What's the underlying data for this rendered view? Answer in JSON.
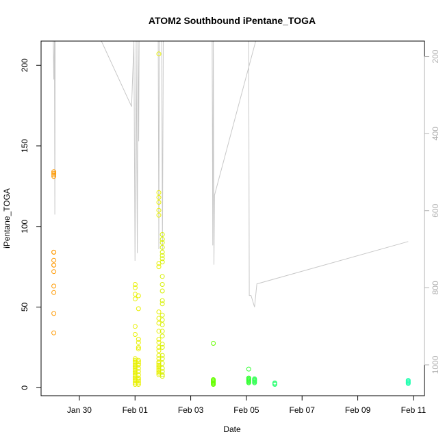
{
  "chart_data": {
    "type": "scatter",
    "title": "ATOM2 Southbound iPentane_TOGA",
    "xlabel": "Date",
    "ylabel": "iPentane_TOGA",
    "x_axis_type": "date",
    "x_range": [
      "2017-01-28T15:00",
      "2017-02-11T09:30"
    ],
    "x_ticks": [
      {
        "label": "Jan 30",
        "date": "2017-01-30"
      },
      {
        "label": "Feb 01",
        "date": "2017-02-01"
      },
      {
        "label": "Feb 03",
        "date": "2017-02-03"
      },
      {
        "label": "Feb 05",
        "date": "2017-02-05"
      },
      {
        "label": "Feb 07",
        "date": "2017-02-07"
      },
      {
        "label": "Feb 09",
        "date": "2017-02-09"
      },
      {
        "label": "Feb 11",
        "date": "2017-02-11"
      }
    ],
    "ylim": [
      -5,
      215
    ],
    "y_ticks": [
      0,
      50,
      100,
      150,
      200
    ],
    "right_axis": {
      "reversed": true,
      "range": [
        160,
        1080
      ],
      "ticks": [
        200,
        400,
        600,
        800,
        1000
      ],
      "color": "#b0b0b0"
    },
    "grid": false,
    "point_groups": [
      {
        "date": "2017-01-29T02:00",
        "color": "#ff9900",
        "values": [
          134,
          133,
          132,
          131,
          84,
          84,
          79,
          76,
          76,
          72,
          63,
          59,
          46,
          34
        ]
      },
      {
        "date": "2017-02-01T00:05",
        "color": "#e8f000",
        "values": [
          64,
          62,
          58,
          55,
          38,
          33,
          18,
          17,
          16,
          15,
          14,
          13,
          12,
          11,
          10,
          9,
          8,
          7,
          6,
          5,
          4,
          3,
          2
        ]
      },
      {
        "date": "2017-02-01T03:00",
        "color": "#e8f000",
        "values": [
          57,
          49,
          30,
          28,
          25,
          24,
          17,
          16,
          15,
          14,
          12,
          10,
          8,
          6,
          5,
          4,
          3,
          2
        ]
      },
      {
        "date": "2017-02-01T20:30",
        "color": "#e8f000",
        "values": [
          207,
          121,
          118,
          115,
          110,
          107,
          77,
          75,
          47,
          43,
          40,
          35,
          30,
          28,
          25,
          23,
          20,
          18,
          16,
          15,
          14,
          13,
          12,
          11,
          10,
          9,
          8
        ]
      },
      {
        "date": "2017-02-01T23:30",
        "color": "#d6f000",
        "values": [
          95,
          92,
          90,
          87,
          84,
          82,
          80,
          78,
          69,
          64,
          60,
          54,
          52,
          45,
          42,
          39,
          35,
          32,
          27,
          25,
          20,
          18,
          15,
          12,
          10,
          8,
          7
        ]
      },
      {
        "date": "2017-02-03T19:30",
        "color": "#66ff00",
        "values": [
          27.5,
          5,
          4.5,
          4,
          3.5,
          3,
          2.5,
          2
        ]
      },
      {
        "date": "2017-02-05T02:00",
        "color": "#33ff33",
        "values": [
          11.5,
          6,
          5.5,
          5,
          4.5,
          4,
          3.5,
          3
        ]
      },
      {
        "date": "2017-02-05T07:00",
        "color": "#33ff55",
        "values": [
          5.5,
          5,
          4.5,
          4,
          3.5,
          3
        ]
      },
      {
        "date": "2017-02-06T00:30",
        "color": "#33ff77",
        "values": [
          3,
          2.5,
          2
        ]
      },
      {
        "date": "2017-02-10T19:30",
        "color": "#22ffb0",
        "values": [
          4.5,
          4,
          3.5,
          3,
          2.5
        ]
      }
    ],
    "altitude_track": {
      "color": "#c8c8c8",
      "axis": "right",
      "points": [
        [
          "2017-01-29T01:30",
          160
        ],
        [
          "2017-01-29T02:00",
          260
        ],
        [
          "2017-01-29T02:30",
          160
        ],
        [
          "2017-01-29T02:50",
          610
        ],
        [
          "2017-01-29T03:10",
          160
        ],
        [
          "2017-01-30T19:00",
          160
        ],
        [
          "2017-01-31T21:00",
          330
        ],
        [
          "2017-01-31T23:00",
          160
        ],
        [
          "2017-02-01T00:00",
          730
        ],
        [
          "2017-02-01T01:00",
          160
        ],
        [
          "2017-02-01T02:00",
          710
        ],
        [
          "2017-02-01T02:30",
          160
        ],
        [
          "2017-02-01T03:10",
          420
        ],
        [
          "2017-02-01T03:30",
          160
        ],
        [
          "2017-02-01T20:00",
          160
        ],
        [
          "2017-02-01T20:30",
          700
        ],
        [
          "2017-02-01T21:00",
          160
        ],
        [
          "2017-02-01T23:00",
          160
        ],
        [
          "2017-02-01T23:40",
          700
        ],
        [
          "2017-02-02T00:20",
          160
        ],
        [
          "2017-02-03T18:30",
          160
        ],
        [
          "2017-02-03T19:00",
          690
        ],
        [
          "2017-02-03T19:30",
          160
        ],
        [
          "2017-02-03T20:00",
          740
        ],
        [
          "2017-02-03T20:30",
          560
        ],
        [
          "2017-02-05T08:00",
          160
        ],
        [
          "2017-02-05T02:00",
          160
        ],
        [
          "2017-02-05T02:30",
          820
        ],
        [
          "2017-02-05T04:00",
          820
        ],
        [
          "2017-02-05T07:00",
          850
        ],
        [
          "2017-02-05T09:00",
          790
        ],
        [
          "2017-02-10T19:30",
          680
        ]
      ]
    }
  }
}
